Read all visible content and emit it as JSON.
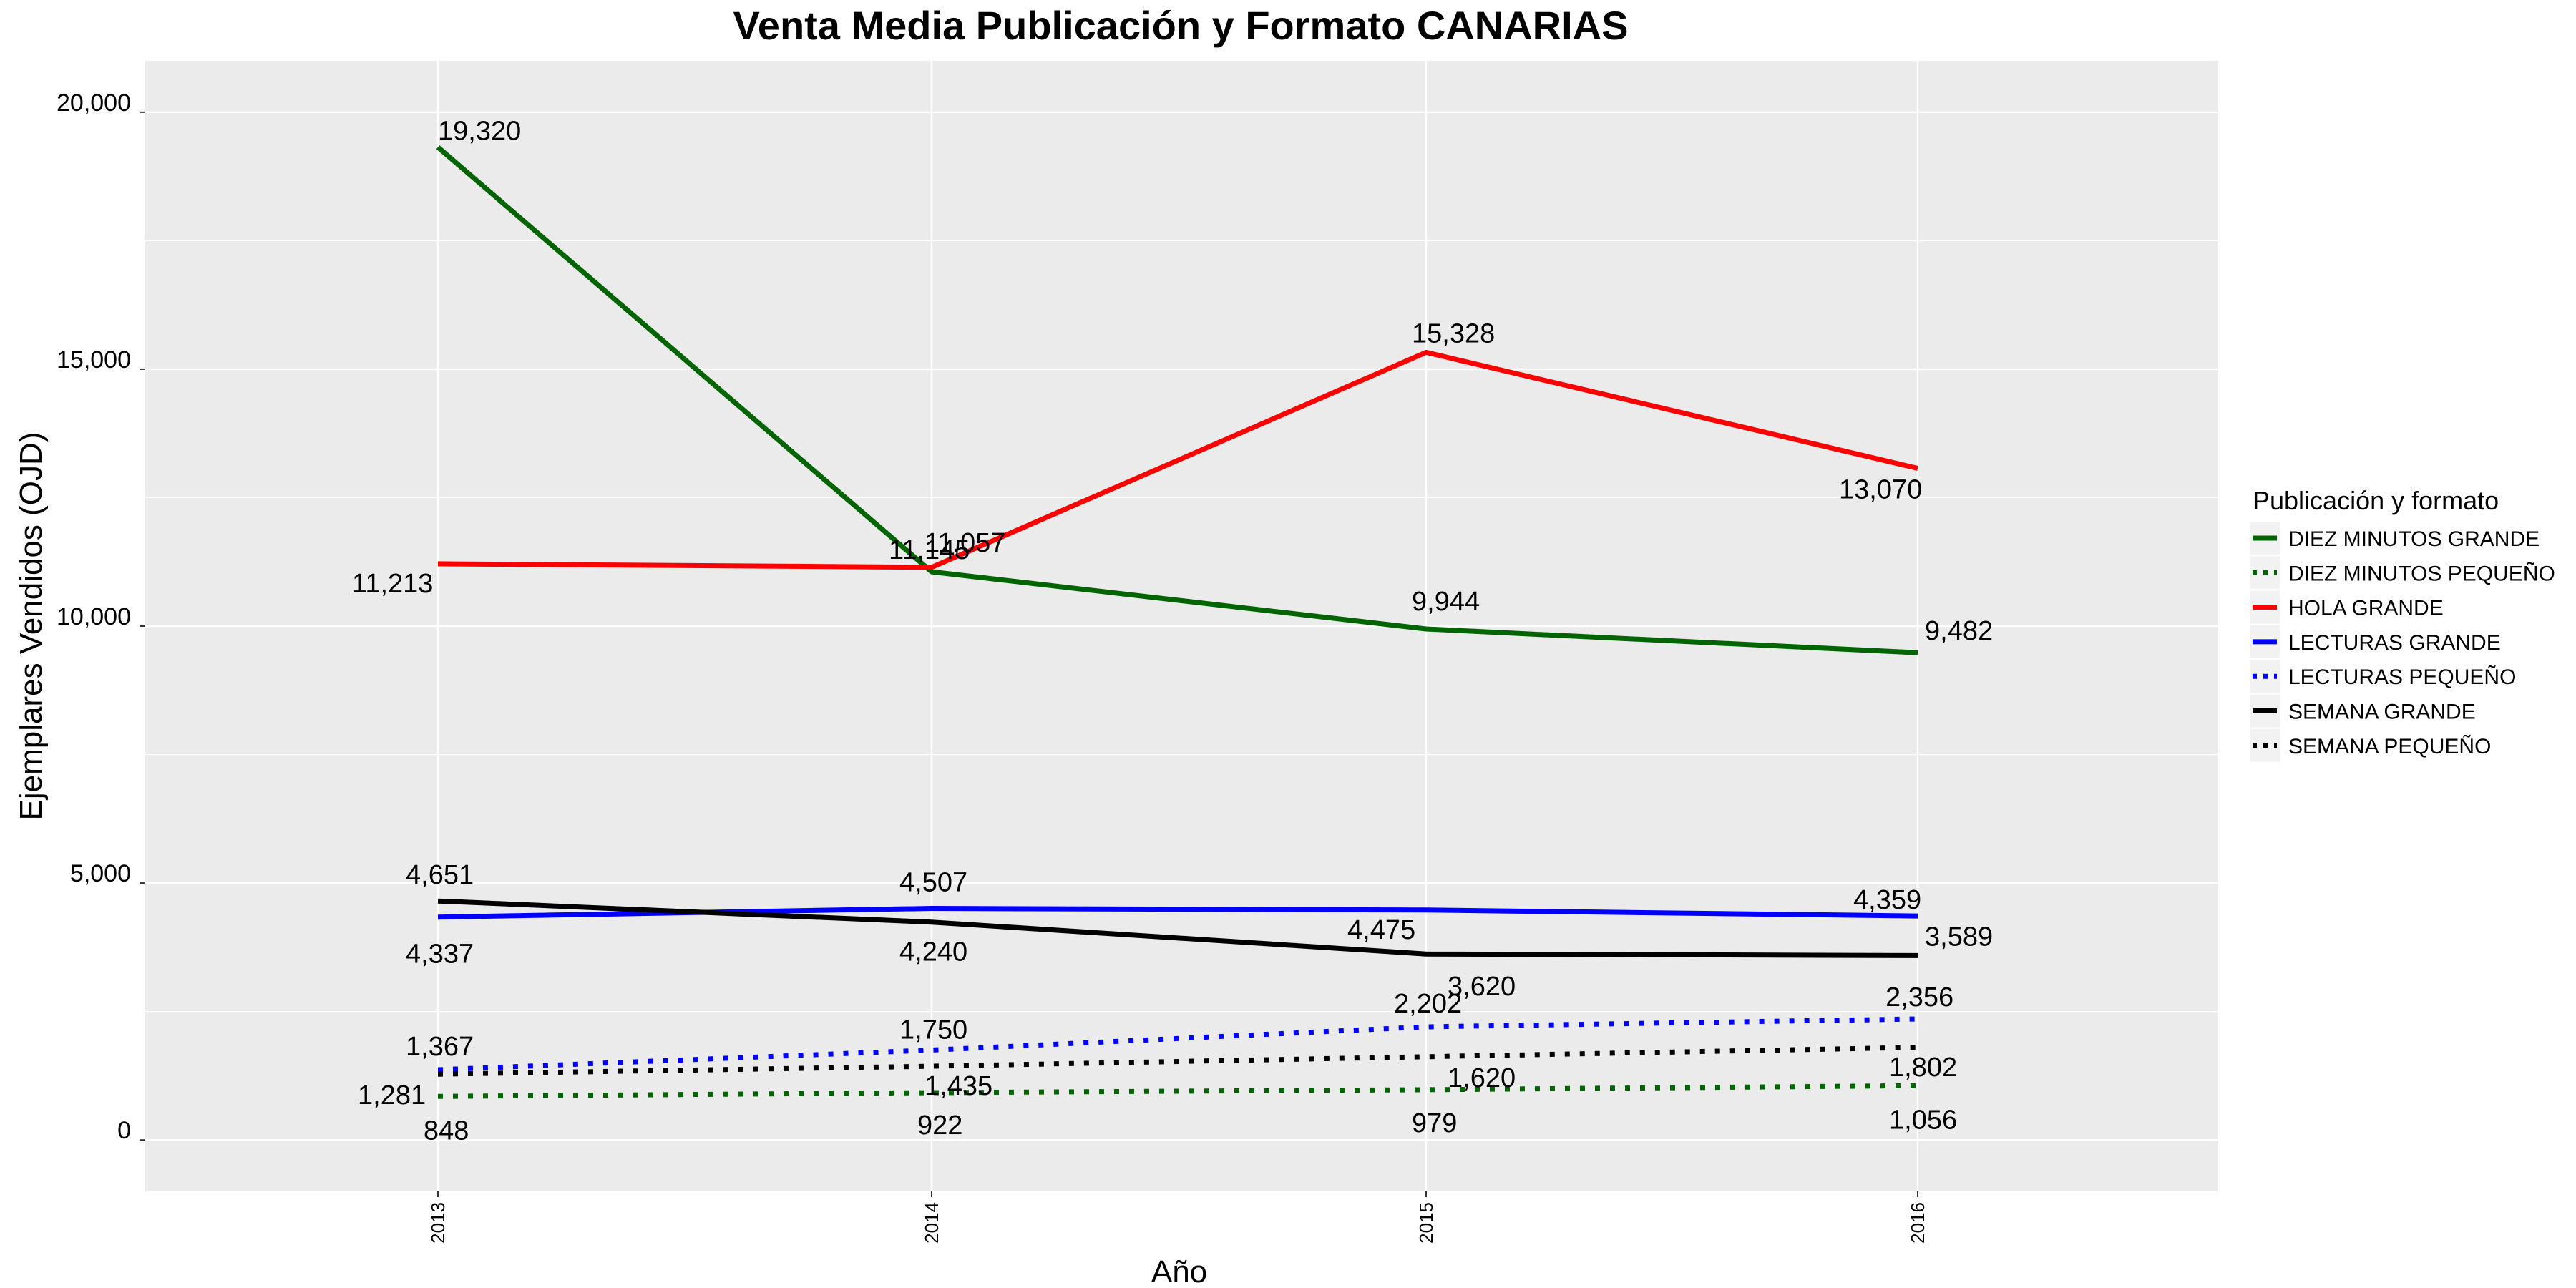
{
  "chart_data": {
    "type": "line",
    "title": "Venta Media Publicación y Formato  CANARIAS",
    "xlabel": "Año",
    "ylabel": "Ejemplares Vendidos (OJD)",
    "categories": [
      "2013",
      "2014",
      "2015",
      "2016"
    ],
    "ylim": [
      -1000,
      21000
    ],
    "yticks": [
      0,
      5000,
      10000,
      15000,
      20000
    ],
    "ytick_labels": [
      "0",
      "5,000",
      "10,000",
      "15,000",
      "20,000"
    ],
    "grid": true,
    "legend": {
      "title": "Publicación y formato",
      "position": "right"
    },
    "series": [
      {
        "name": "DIEZ MINUTOS GRANDE",
        "color": "#006400",
        "dash": "solid",
        "values": [
          19320,
          11057,
          9944,
          9482
        ],
        "labels": [
          "19,320",
          "11,057",
          "9,944",
          "9,482"
        ]
      },
      {
        "name": "DIEZ MINUTOS PEQUEÑO",
        "color": "#006400",
        "dash": "dotted",
        "values": [
          848,
          922,
          979,
          1056
        ],
        "labels": [
          "848",
          "922",
          "979",
          "1,056"
        ]
      },
      {
        "name": "HOLA GRANDE",
        "color": "#ff0000",
        "dash": "solid",
        "values": [
          11213,
          11145,
          15328,
          13070
        ],
        "labels": [
          "11,213",
          "11,145",
          "15,328",
          "13,070"
        ]
      },
      {
        "name": "LECTURAS GRANDE",
        "color": "#0000ff",
        "dash": "solid",
        "values": [
          4337,
          4507,
          4475,
          4359
        ],
        "labels": [
          "4,337",
          "4,507",
          "4,475",
          "4,359"
        ]
      },
      {
        "name": "LECTURAS PEQUEÑO",
        "color": "#0000ff",
        "dash": "dotted",
        "values": [
          1367,
          1750,
          2202,
          2356
        ],
        "labels": [
          "1,367",
          "1,750",
          "2,202",
          "2,356"
        ]
      },
      {
        "name": "SEMANA GRANDE",
        "color": "#000000",
        "dash": "solid",
        "values": [
          4651,
          4240,
          3620,
          3589
        ],
        "labels": [
          "4,651",
          "4,240",
          "3,620",
          "3,589"
        ]
      },
      {
        "name": "SEMANA PEQUEÑO",
        "color": "#000000",
        "dash": "dotted",
        "values": [
          1281,
          1435,
          1620,
          1802
        ],
        "labels": [
          "1,281",
          "1,435",
          "1,620",
          "1,802"
        ]
      }
    ]
  }
}
